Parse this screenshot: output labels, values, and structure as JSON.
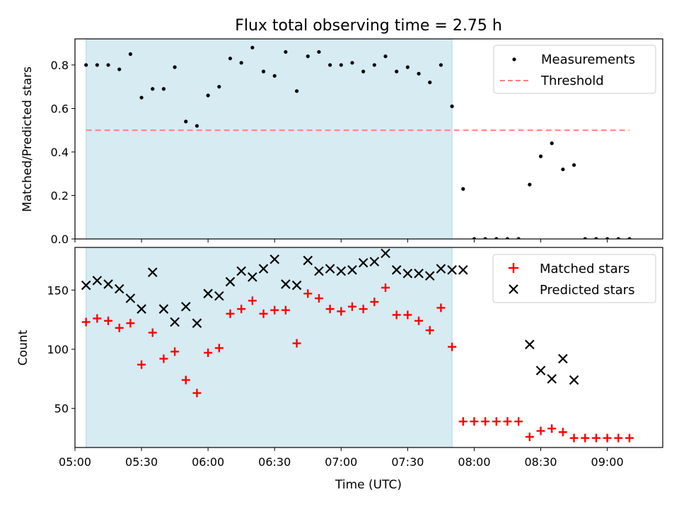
{
  "chart_data": [
    {
      "type": "scatter",
      "title": "Flux total observing time = 2.75 h",
      "xlabel": "",
      "ylabel": "Matched/Predicted stars",
      "xlim": [
        "05:00",
        "09:25"
      ],
      "ylim": [
        0,
        0.92
      ],
      "yticks": [
        0.0,
        0.2,
        0.4,
        0.6,
        0.8
      ],
      "yticklabels": [
        "0.0",
        "0.2",
        "0.4",
        "0.6",
        "0.8"
      ],
      "shaded_span": {
        "start": "05:05",
        "end": "07:50",
        "color": "#add8e6"
      },
      "legend_position": "upper right",
      "series": [
        {
          "name": "Measurements",
          "marker": "dot",
          "color": "#000000",
          "x": [
            "05:05",
            "05:10",
            "05:15",
            "05:20",
            "05:25",
            "05:30",
            "05:35",
            "05:40",
            "05:45",
            "05:50",
            "05:55",
            "06:00",
            "06:05",
            "06:10",
            "06:15",
            "06:20",
            "06:25",
            "06:30",
            "06:35",
            "06:40",
            "06:45",
            "06:50",
            "06:55",
            "07:00",
            "07:05",
            "07:10",
            "07:15",
            "07:20",
            "07:25",
            "07:30",
            "07:35",
            "07:40",
            "07:45",
            "07:50",
            "07:55",
            "08:00",
            "08:05",
            "08:10",
            "08:15",
            "08:20",
            "08:25",
            "08:30",
            "08:35",
            "08:40",
            "08:45",
            "08:50",
            "08:55",
            "09:00",
            "09:05",
            "09:10"
          ],
          "y": [
            0.8,
            0.8,
            0.8,
            0.78,
            0.85,
            0.65,
            0.69,
            0.69,
            0.79,
            0.54,
            0.52,
            0.66,
            0.7,
            0.83,
            0.81,
            0.88,
            0.77,
            0.75,
            0.86,
            0.68,
            0.84,
            0.86,
            0.8,
            0.8,
            0.81,
            0.77,
            0.8,
            0.84,
            0.77,
            0.79,
            0.76,
            0.72,
            0.8,
            0.61,
            0.23,
            0.0,
            0.0,
            0.0,
            0.0,
            0.0,
            0.25,
            0.38,
            0.44,
            0.32,
            0.34,
            0.0,
            0.0,
            0.0,
            0.0,
            0.0
          ]
        },
        {
          "name": "Threshold",
          "line_style": "dashed",
          "color": "#ff7f7f",
          "x": [
            "05:05",
            "09:10"
          ],
          "y": [
            0.5,
            0.5
          ]
        }
      ]
    },
    {
      "type": "scatter",
      "title": "",
      "xlabel": "Time (UTC)",
      "ylabel": "Count",
      "xlim": [
        "05:00",
        "09:25"
      ],
      "ylim": [
        17,
        186
      ],
      "yticks": [
        50,
        100,
        150
      ],
      "yticklabels": [
        "50",
        "100",
        "150"
      ],
      "xticks": [
        "05:00",
        "05:30",
        "06:00",
        "06:30",
        "07:00",
        "07:30",
        "08:00",
        "08:30",
        "09:00"
      ],
      "shaded_span": {
        "start": "05:05",
        "end": "07:50",
        "color": "#add8e6"
      },
      "legend_position": "upper right",
      "series": [
        {
          "name": "Matched stars",
          "marker": "plus",
          "color": "#ff0000",
          "x": [
            "05:05",
            "05:10",
            "05:15",
            "05:20",
            "05:25",
            "05:30",
            "05:35",
            "05:40",
            "05:45",
            "05:50",
            "05:55",
            "06:00",
            "06:05",
            "06:10",
            "06:15",
            "06:20",
            "06:25",
            "06:30",
            "06:35",
            "06:40",
            "06:45",
            "06:50",
            "06:55",
            "07:00",
            "07:05",
            "07:10",
            "07:15",
            "07:20",
            "07:25",
            "07:30",
            "07:35",
            "07:40",
            "07:45",
            "07:50",
            "07:55",
            "08:00",
            "08:05",
            "08:10",
            "08:15",
            "08:20",
            "08:25",
            "08:30",
            "08:35",
            "08:40",
            "08:45",
            "08:50",
            "08:55",
            "09:00",
            "09:05",
            "09:10"
          ],
          "y": [
            123,
            126,
            124,
            118,
            122,
            87,
            114,
            92,
            98,
            74,
            63,
            97,
            101,
            130,
            134,
            141,
            130,
            133,
            133,
            105,
            147,
            143,
            134,
            132,
            136,
            134,
            140,
            152,
            129,
            129,
            124,
            116,
            135,
            102,
            39,
            39,
            39,
            39,
            39,
            39,
            26,
            31,
            33,
            30,
            25,
            25,
            25,
            25,
            25,
            25
          ]
        },
        {
          "name": "Predicted stars",
          "marker": "x",
          "color": "#000000",
          "x": [
            "05:05",
            "05:10",
            "05:15",
            "05:20",
            "05:25",
            "05:30",
            "05:35",
            "05:40",
            "05:45",
            "05:50",
            "05:55",
            "06:00",
            "06:05",
            "06:10",
            "06:15",
            "06:20",
            "06:25",
            "06:30",
            "06:35",
            "06:40",
            "06:45",
            "06:50",
            "06:55",
            "07:00",
            "07:05",
            "07:10",
            "07:15",
            "07:20",
            "07:25",
            "07:30",
            "07:35",
            "07:40",
            "07:45",
            "07:50",
            "07:55",
            "08:25",
            "08:30",
            "08:35",
            "08:40",
            "08:45"
          ],
          "y": [
            154,
            158,
            155,
            151,
            143,
            134,
            165,
            134,
            123,
            136,
            122,
            147,
            145,
            157,
            166,
            161,
            168,
            176,
            155,
            154,
            175,
            166,
            168,
            166,
            167,
            173,
            174,
            181,
            167,
            164,
            164,
            162,
            168,
            167,
            167,
            104,
            82,
            75,
            92,
            74
          ]
        }
      ]
    }
  ]
}
